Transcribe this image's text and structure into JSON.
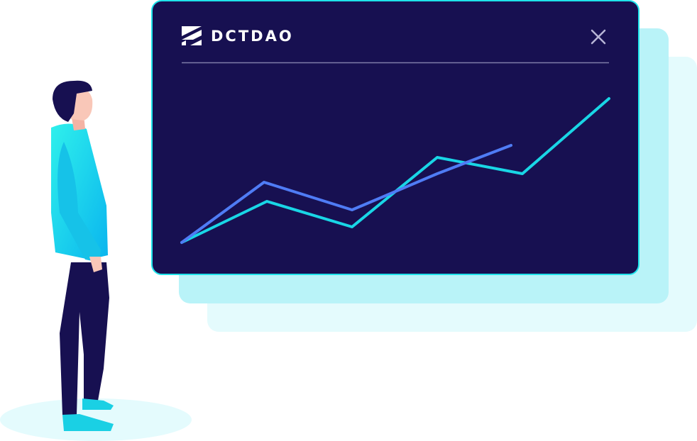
{
  "window": {
    "brand": "DCTDAO"
  }
}
